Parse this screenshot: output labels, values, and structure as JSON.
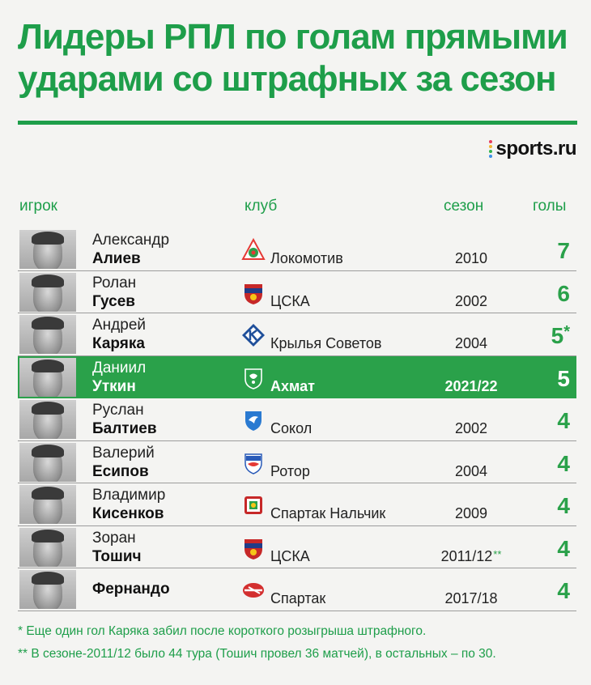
{
  "title": {
    "line1": "Лидеры РПЛ по голам прямыми",
    "line2": "ударами со штрафных за сезон"
  },
  "brand": {
    "name": "sports.ru",
    "dot_colors": [
      "#e63b5c",
      "#f2b632",
      "#31b34b",
      "#3b8fe6"
    ]
  },
  "headers": {
    "player": "игрок",
    "club": "клуб",
    "season": "сезон",
    "goals": "голы"
  },
  "colors": {
    "accent": "#1e9e4a",
    "highlight_row": "#2aa14a"
  },
  "rows": [
    {
      "first_name": "Александр",
      "last_name": "Алиев",
      "club": "Локомотив",
      "club_icon": "lokomotiv-logo",
      "season": "2010",
      "season_note": "",
      "goals": "7",
      "goals_note": "",
      "highlight": false
    },
    {
      "first_name": "Ролан",
      "last_name": "Гусев",
      "club": "ЦСКА",
      "club_icon": "cska-logo",
      "season": "2002",
      "season_note": "",
      "goals": "6",
      "goals_note": "",
      "highlight": false
    },
    {
      "first_name": "Андрей",
      "last_name": "Каряка",
      "club": "Крылья Советов",
      "club_icon": "krylia-sovetov-logo",
      "season": "2004",
      "season_note": "",
      "goals": "5",
      "goals_note": "*",
      "highlight": false
    },
    {
      "first_name": "Даниил",
      "last_name": "Уткин",
      "club": "Ахмат",
      "club_icon": "akhmat-logo",
      "season": "2021/22",
      "season_note": "",
      "goals": "5",
      "goals_note": "",
      "highlight": true
    },
    {
      "first_name": "Руслан",
      "last_name": "Балтиев",
      "club": "Сокол",
      "club_icon": "sokol-logo",
      "season": "2002",
      "season_note": "",
      "goals": "4",
      "goals_note": "",
      "highlight": false
    },
    {
      "first_name": "Валерий",
      "last_name": "Есипов",
      "club": "Ротор",
      "club_icon": "rotor-logo",
      "season": "2004",
      "season_note": "",
      "goals": "4",
      "goals_note": "",
      "highlight": false
    },
    {
      "first_name": "Владимир",
      "last_name": "Кисенков",
      "club": "Спартак Нальчик",
      "club_icon": "spartak-nalchik-logo",
      "season": "2009",
      "season_note": "",
      "goals": "4",
      "goals_note": "",
      "highlight": false
    },
    {
      "first_name": "Зоран",
      "last_name": "Тошич",
      "club": "ЦСКА",
      "club_icon": "cska-logo",
      "season": "2011/12",
      "season_note": "**",
      "goals": "4",
      "goals_note": "",
      "highlight": false
    },
    {
      "first_name": "",
      "last_name": "Фернандо",
      "club": "Спартак",
      "club_icon": "spartak-logo",
      "season": "2017/18",
      "season_note": "",
      "goals": "4",
      "goals_note": "",
      "highlight": false
    }
  ],
  "footnotes": [
    "* Еще один гол Каряка забил после короткого розыгрыша штрафного.",
    "** В сезоне-2011/12 было 44 тура (Тошич провел 36 матчей), в остальных – по 30."
  ]
}
